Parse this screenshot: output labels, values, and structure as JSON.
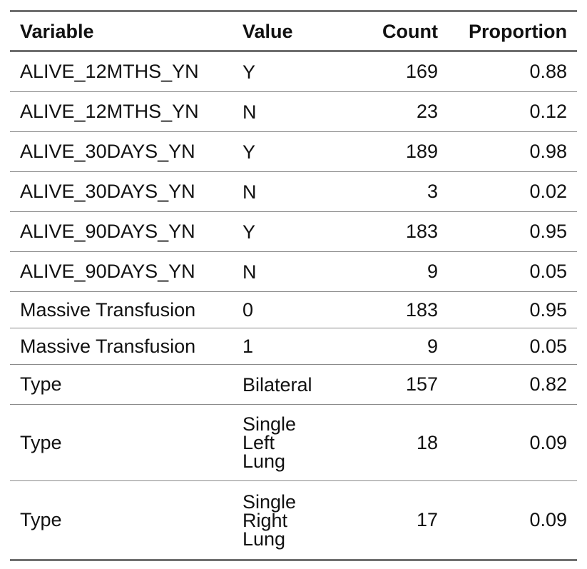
{
  "table": {
    "headers": {
      "variable": "Variable",
      "value": "Value",
      "count": "Count",
      "proportion": "Proportion"
    },
    "rows": [
      {
        "variable": "ALIVE_12MTHS_YN",
        "value": "Y",
        "count": "169",
        "proportion": "0.88"
      },
      {
        "variable": "ALIVE_12MTHS_YN",
        "value": "N",
        "count": "23",
        "proportion": "0.12"
      },
      {
        "variable": "ALIVE_30DAYS_YN",
        "value": "Y",
        "count": "189",
        "proportion": "0.98"
      },
      {
        "variable": "ALIVE_30DAYS_YN",
        "value": "N",
        "count": "3",
        "proportion": "0.02"
      },
      {
        "variable": "ALIVE_90DAYS_YN",
        "value": "Y",
        "count": "183",
        "proportion": "0.95"
      },
      {
        "variable": "ALIVE_90DAYS_YN",
        "value": "N",
        "count": "9",
        "proportion": "0.05"
      },
      {
        "variable": "Massive Transfusion",
        "value": "0",
        "count": "183",
        "proportion": "0.95"
      },
      {
        "variable": "Massive Transfusion",
        "value": "1",
        "count": "9",
        "proportion": "0.05"
      },
      {
        "variable": "Type",
        "value": "Bilateral",
        "count": "157",
        "proportion": "0.82"
      },
      {
        "variable": "Type",
        "value": "Single Left Lung",
        "count": "18",
        "proportion": "0.09"
      },
      {
        "variable": "Type",
        "value": "Single Right Lung",
        "count": "17",
        "proportion": "0.09"
      }
    ]
  }
}
